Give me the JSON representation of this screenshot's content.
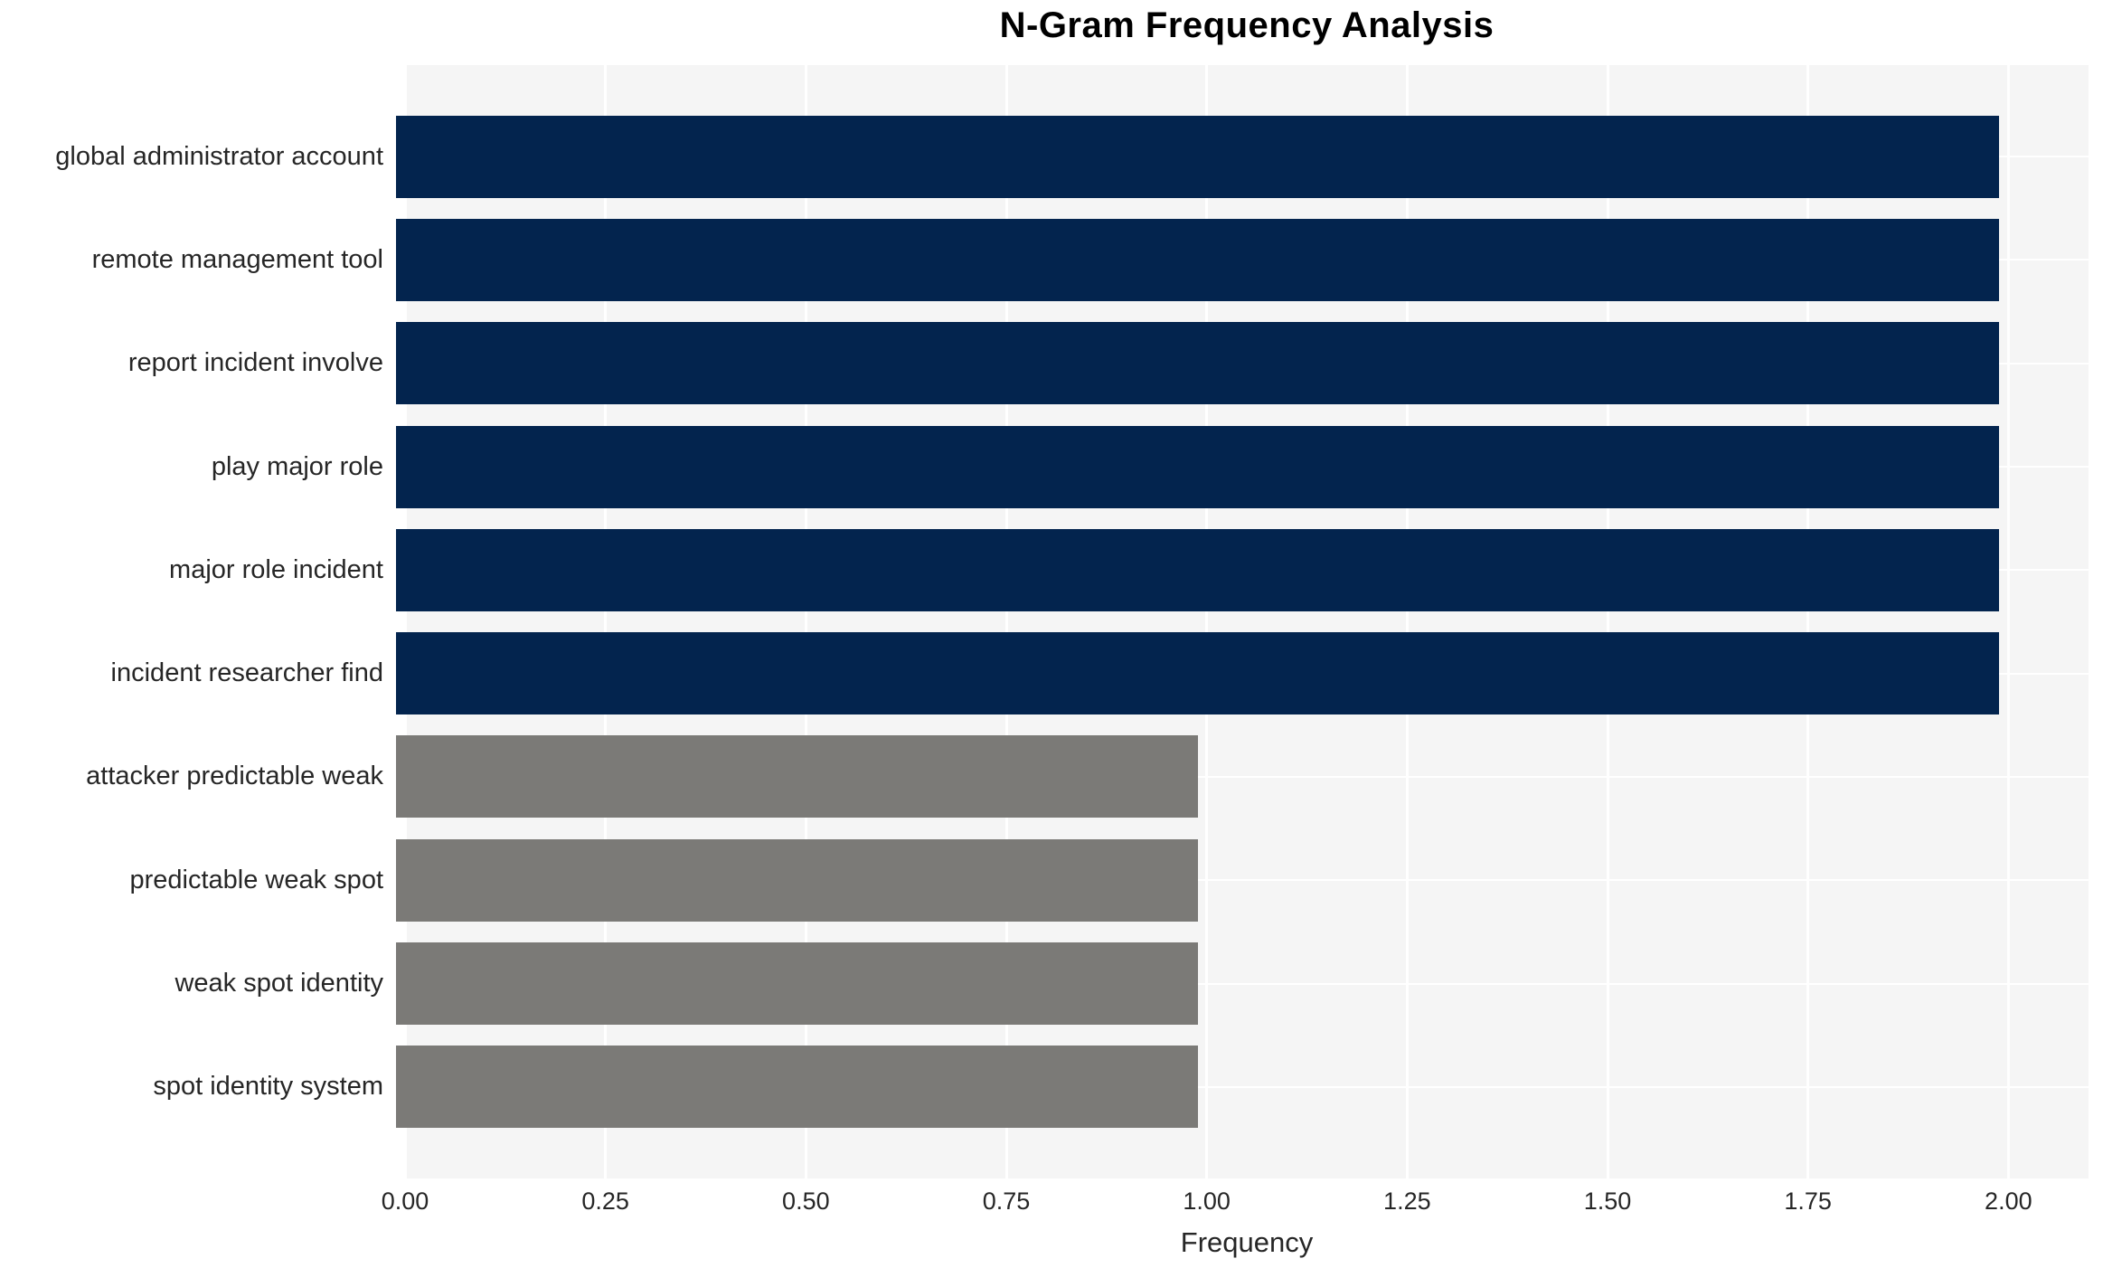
{
  "chart_data": {
    "type": "bar",
    "orientation": "horizontal",
    "title": "N-Gram Frequency Analysis",
    "xlabel": "Frequency",
    "ylabel": "",
    "categories": [
      "global administrator account",
      "remote management tool",
      "report incident involve",
      "play major role",
      "major role incident",
      "incident researcher find",
      "attacker predictable weak",
      "predictable weak spot",
      "weak spot identity",
      "spot identity system"
    ],
    "values": [
      2,
      2,
      2,
      2,
      2,
      2,
      1,
      1,
      1,
      1
    ],
    "bar_colors": [
      "#03244e",
      "#03244e",
      "#03244e",
      "#03244e",
      "#03244e",
      "#03244e",
      "#7b7a77",
      "#7b7a77",
      "#7b7a77",
      "#7b7a77"
    ],
    "xticks": [
      "0.00",
      "0.25",
      "0.50",
      "0.75",
      "1.00",
      "1.25",
      "1.50",
      "1.75",
      "2.00"
    ],
    "xlim": [
      0,
      2.1
    ],
    "grid": true,
    "legend": "none",
    "styles": {
      "bar_color_freq2": "#03244e",
      "bar_color_freq1": "#7b7a77",
      "plot_background": "#f5f5f5",
      "gridline_color": "#ffffff",
      "text_color": "#262626",
      "title_color": "#000000"
    }
  }
}
